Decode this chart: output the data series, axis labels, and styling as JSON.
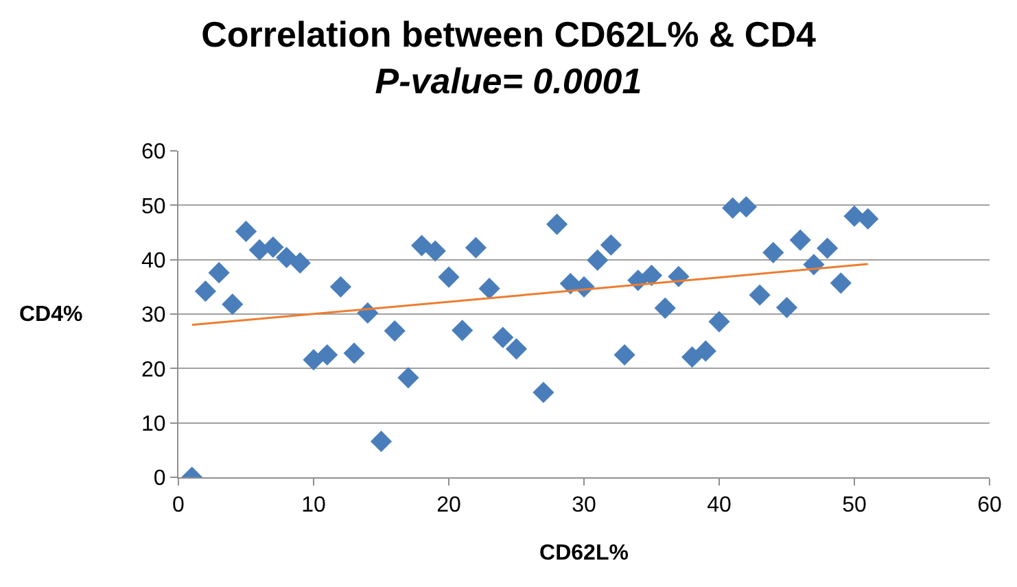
{
  "chart_data": {
    "type": "scatter",
    "title": "Correlation between CD62L% & CD4",
    "subtitle": "P-value= 0.0001",
    "xlabel": "CD62L%",
    "ylabel": "CD4%",
    "series": [
      {
        "color": "#4a7ebb",
        "marker": "diamond",
        "x": [
          1,
          2,
          3,
          4,
          5,
          6,
          7,
          8,
          9,
          10,
          11,
          12,
          13,
          14,
          15,
          16,
          17,
          18,
          19,
          20,
          21,
          22,
          23,
          24,
          25,
          27,
          28,
          29,
          30,
          31,
          32,
          33,
          34,
          35,
          36,
          37,
          38,
          39,
          40,
          41,
          42,
          43,
          44,
          45,
          46,
          47,
          48,
          49,
          50,
          51
        ],
        "values": [
          0,
          34.2,
          37.6,
          31.8,
          45.2,
          41.8,
          42.3,
          40.4,
          39.4,
          21.6,
          22.5,
          35,
          22.8,
          30.2,
          6.6,
          26.9,
          18.3,
          42.6,
          41.6,
          36.8,
          27,
          42.2,
          34.7,
          25.7,
          23.6,
          15.6,
          46.5,
          35.6,
          35,
          39.9,
          42.7,
          22.5,
          36.2,
          37.1,
          31.1,
          36.9,
          22.1,
          23.2,
          28.6,
          49.5,
          49.7,
          33.5,
          41.3,
          31.2,
          43.6,
          39.1,
          42.1,
          35.7,
          48,
          47.5
        ]
      },
      {
        "type": "line",
        "color": "#ed7d31",
        "marker": "none",
        "x": [
          1,
          51
        ],
        "values": [
          28,
          39.2
        ]
      }
    ],
    "xlim": [
      0,
      60
    ],
    "xticks": [
      0,
      10,
      20,
      30,
      40,
      50,
      60
    ],
    "ylim": [
      0,
      60
    ],
    "yticks": [
      0,
      10,
      20,
      30,
      40,
      50,
      60
    ],
    "grid": "y",
    "legend": false
  }
}
